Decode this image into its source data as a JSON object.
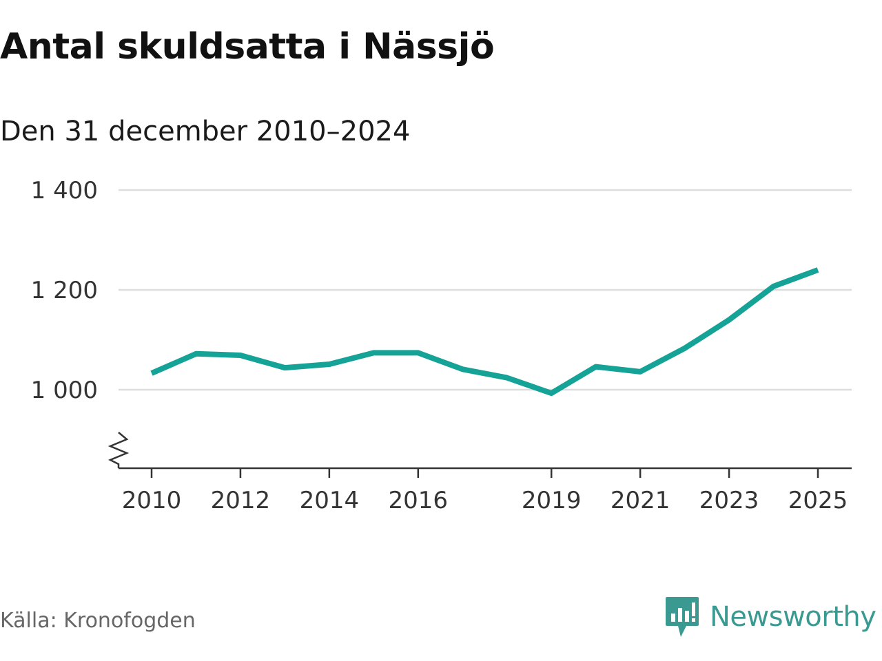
{
  "chart_data": {
    "type": "line",
    "title": "Antal skuldsatta i Nässjö",
    "subtitle": "Den 31 december 2010–2024",
    "source": "Källa: Kronofogden",
    "brand": "Newsworthy",
    "x": [
      2010,
      2011,
      2012,
      2013,
      2014,
      2015,
      2016,
      2017,
      2018,
      2019,
      2020,
      2021,
      2022,
      2023,
      2024,
      2025
    ],
    "series": [
      {
        "values": [
          1033,
          1072,
          1069,
          1044,
          1051,
          1074,
          1074,
          1041,
          1024,
          993,
          1046,
          1036,
          1083,
          1140,
          1207,
          1240
        ]
      }
    ],
    "x_ticks": [
      "2010",
      "2012",
      "2014",
      "2016",
      "2019",
      "2021",
      "2023",
      "2025"
    ],
    "y_ticks": [
      {
        "value": 1000,
        "label": "1 000"
      },
      {
        "value": 1200,
        "label": "1 200"
      },
      {
        "value": 1400,
        "label": "1 400"
      }
    ],
    "ylim": [
      850,
      1400
    ],
    "y_axis_break": true,
    "grid": true,
    "line_color": "#16a397",
    "grid_color": "#dddddd",
    "axis_color": "#333333",
    "brand_color": "#3a9a92"
  }
}
